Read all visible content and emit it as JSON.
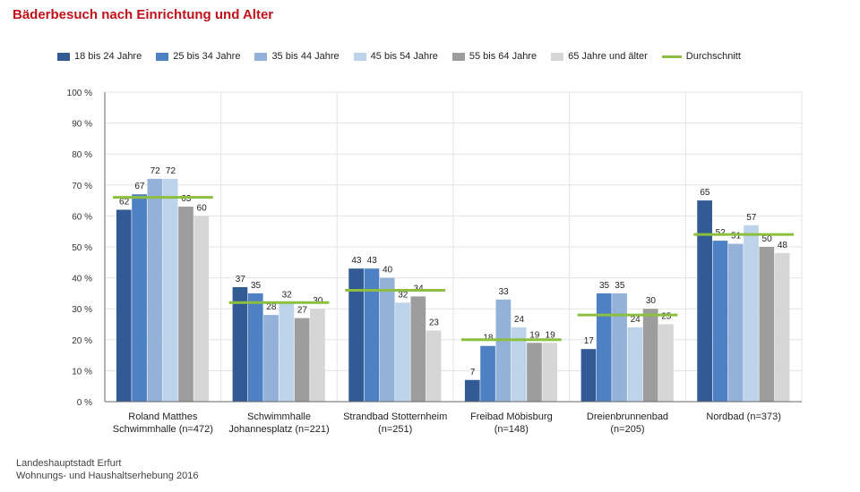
{
  "title": "Bäderbesuch nach Einrichtung und Alter",
  "footer": {
    "line1": "Landeshauptstadt Erfurt",
    "line2": "Wohnungs- und Haushaltserhebung 2016"
  },
  "colors": {
    "series": [
      "#325a94",
      "#4e81c4",
      "#93b1d9",
      "#bdd3ea",
      "#9d9d9d",
      "#d6d6d6"
    ],
    "average": "#8cbf3f",
    "grid": "#e3e3e3"
  },
  "chart_data": {
    "type": "bar",
    "title": "Bäderbesuch nach Einrichtung und Alter",
    "xlabel": "",
    "ylabel": "",
    "ylim": [
      0,
      100
    ],
    "y_ticks": [
      "0 %",
      "10 %",
      "20 %",
      "30 %",
      "40 %",
      "50 %",
      "60 %",
      "70 %",
      "80 %",
      "90 %",
      "100 %"
    ],
    "grid": true,
    "legend_position": "top",
    "categories": [
      [
        "Roland Matthes",
        "Schwimmhalle (n=472)"
      ],
      [
        "Schwimmhalle",
        "Johannesplatz (n=221)"
      ],
      [
        "Strandbad Stotternheim",
        "(n=251)"
      ],
      [
        "Freibad Möbisburg",
        "(n=148)"
      ],
      [
        "Dreienbrunnenbad",
        "(n=205)"
      ],
      [
        "Nordbad (n=373)"
      ]
    ],
    "series": [
      {
        "name": "18 bis 24 Jahre",
        "values": [
          62,
          37,
          43,
          7,
          17,
          65
        ]
      },
      {
        "name": "25 bis 34 Jahre",
        "values": [
          67,
          35,
          43,
          18,
          35,
          52
        ]
      },
      {
        "name": "35 bis 44 Jahre",
        "values": [
          72,
          28,
          40,
          33,
          35,
          51
        ]
      },
      {
        "name": "45 bis 54 Jahre",
        "values": [
          72,
          32,
          32,
          24,
          24,
          57
        ]
      },
      {
        "name": "55 bis 64 Jahre",
        "values": [
          63,
          27,
          34,
          19,
          30,
          50
        ]
      },
      {
        "name": "65 Jahre und älter",
        "values": [
          60,
          30,
          23,
          19,
          25,
          48
        ]
      }
    ],
    "average": {
      "name": "Durchschnitt",
      "values": [
        66,
        32,
        36,
        20,
        28,
        54
      ]
    }
  }
}
